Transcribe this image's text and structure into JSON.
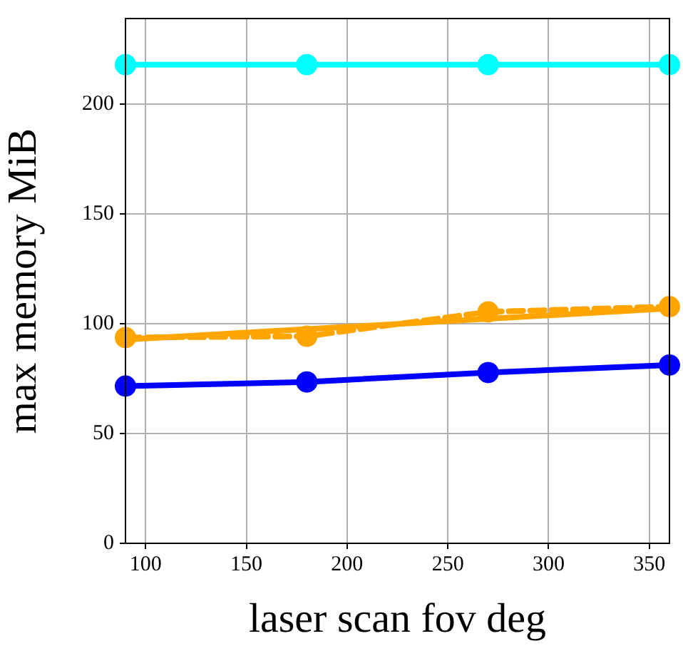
{
  "chart_data": {
    "type": "line",
    "xlabel": "laser scan fov deg",
    "ylabel": "max memory MiB",
    "x": [
      90,
      180,
      270,
      360
    ],
    "series": [
      {
        "color": "#00ffff",
        "values": [
          218,
          218,
          218,
          218
        ],
        "marker": "circle",
        "line_style": "solid"
      },
      {
        "color": "#ffa500",
        "values": [
          93.7,
          94.3,
          105.4,
          107.8
        ],
        "marker": "circle",
        "line_style": "dashed"
      },
      {
        "type": "line",
        "color": "#ffa500",
        "x": [
          90,
          360
        ],
        "values": [
          92.8,
          107
        ],
        "marker": "none",
        "line_style": "solid"
      },
      {
        "color": "#0000ff",
        "values": [
          71.6,
          73.5,
          77.8,
          81.2
        ],
        "marker": "circle",
        "line_style": "solid"
      }
    ],
    "xlim": [
      90,
      360
    ],
    "xticks": [
      100,
      150,
      200,
      250,
      300,
      350
    ],
    "ylim": [
      0,
      239
    ],
    "yticks": [
      0,
      50,
      100,
      150,
      200
    ],
    "grid": true,
    "legend": false
  }
}
